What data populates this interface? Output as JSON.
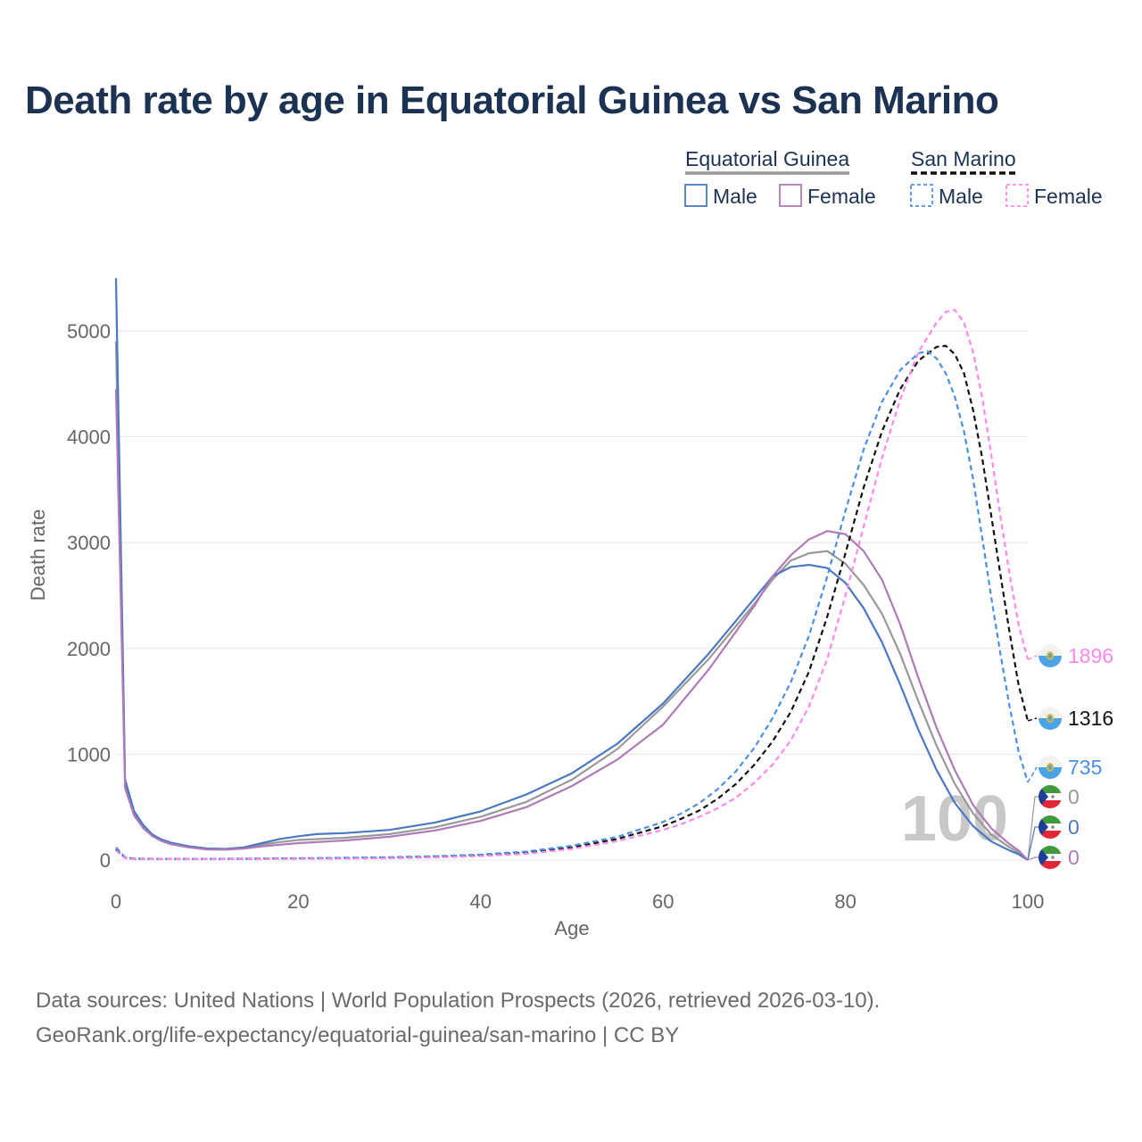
{
  "title": "Death rate by age in Equatorial Guinea vs San Marino",
  "footer": {
    "line1": "Data sources: United Nations | World Population Prospects (2026, retrieved 2026-03-10).",
    "line2": "GeoRank.org/life-expectancy/equatorial-guinea/san-marino | CC BY"
  },
  "legend": {
    "groups": [
      {
        "name": "Equatorial Guinea",
        "line_color": "#999999",
        "dashed": false,
        "items": [
          {
            "label": "Male",
            "color": "#4a78c2"
          },
          {
            "label": "Female",
            "color": "#b07ab8"
          }
        ]
      },
      {
        "name": "San Marino",
        "line_color": "#111111",
        "dashed": true,
        "items": [
          {
            "label": "Male",
            "color": "#4a90e2"
          },
          {
            "label": "Female",
            "color": "#ff88ee"
          }
        ]
      }
    ]
  },
  "watermark": "100",
  "end_labels": [
    {
      "text": "1896",
      "value": 1896,
      "color": "#ff88ee",
      "flag": "san-marino"
    },
    {
      "text": "1316",
      "value": 1316,
      "color": "#111111",
      "flag": "san-marino"
    },
    {
      "text": "735",
      "value": 735,
      "color": "#4a90e2",
      "flag": "san-marino"
    },
    {
      "text": "0",
      "value": 0,
      "color": "#999999",
      "flag": "equatorial-guinea"
    },
    {
      "text": "0",
      "value": 0,
      "color": "#4a78c2",
      "flag": "equatorial-guinea"
    },
    {
      "text": "0",
      "value": 0,
      "color": "#b07ab8",
      "flag": "equatorial-guinea"
    }
  ],
  "chart_data": {
    "type": "line",
    "xlabel": "Age",
    "ylabel": "Death rate",
    "xlim": [
      0,
      100
    ],
    "ylim": [
      -100,
      5500
    ],
    "xticks": [
      0,
      20,
      40,
      60,
      80,
      100
    ],
    "yticks": [
      0,
      1000,
      2000,
      3000,
      4000,
      5000
    ],
    "grid": true,
    "series": [
      {
        "name": "Equatorial Guinea Total",
        "color": "#999999",
        "dash": false,
        "points": [
          [
            0,
            4900
          ],
          [
            1,
            700
          ],
          [
            2,
            440
          ],
          [
            3,
            310
          ],
          [
            4,
            235
          ],
          [
            5,
            190
          ],
          [
            6,
            160
          ],
          [
            8,
            125
          ],
          [
            10,
            105
          ],
          [
            12,
            102
          ],
          [
            14,
            115
          ],
          [
            16,
            145
          ],
          [
            18,
            170
          ],
          [
            20,
            190
          ],
          [
            25,
            210
          ],
          [
            30,
            245
          ],
          [
            35,
            310
          ],
          [
            40,
            410
          ],
          [
            45,
            550
          ],
          [
            50,
            760
          ],
          [
            55,
            1050
          ],
          [
            60,
            1450
          ],
          [
            65,
            1900
          ],
          [
            70,
            2420
          ],
          [
            72,
            2650
          ],
          [
            74,
            2830
          ],
          [
            76,
            2900
          ],
          [
            78,
            2920
          ],
          [
            80,
            2800
          ],
          [
            82,
            2600
          ],
          [
            84,
            2330
          ],
          [
            86,
            1950
          ],
          [
            88,
            1500
          ],
          [
            90,
            1080
          ],
          [
            92,
            720
          ],
          [
            94,
            440
          ],
          [
            96,
            240
          ],
          [
            98,
            120
          ],
          [
            99,
            70
          ],
          [
            100,
            0
          ]
        ]
      },
      {
        "name": "Equatorial Guinea Male",
        "color": "#4a78c2",
        "dash": false,
        "points": [
          [
            0,
            5500
          ],
          [
            1,
            760
          ],
          [
            2,
            460
          ],
          [
            3,
            330
          ],
          [
            4,
            240
          ],
          [
            5,
            195
          ],
          [
            6,
            165
          ],
          [
            8,
            130
          ],
          [
            10,
            110
          ],
          [
            12,
            105
          ],
          [
            14,
            120
          ],
          [
            16,
            160
          ],
          [
            18,
            200
          ],
          [
            20,
            225
          ],
          [
            22,
            245
          ],
          [
            25,
            255
          ],
          [
            30,
            285
          ],
          [
            35,
            355
          ],
          [
            40,
            460
          ],
          [
            45,
            620
          ],
          [
            50,
            820
          ],
          [
            55,
            1100
          ],
          [
            60,
            1480
          ],
          [
            65,
            1950
          ],
          [
            70,
            2470
          ],
          [
            72,
            2680
          ],
          [
            74,
            2770
          ],
          [
            76,
            2790
          ],
          [
            78,
            2760
          ],
          [
            80,
            2620
          ],
          [
            82,
            2380
          ],
          [
            84,
            2060
          ],
          [
            86,
            1660
          ],
          [
            88,
            1230
          ],
          [
            90,
            850
          ],
          [
            92,
            540
          ],
          [
            94,
            320
          ],
          [
            96,
            175
          ],
          [
            98,
            90
          ],
          [
            99,
            55
          ],
          [
            100,
            0
          ]
        ]
      },
      {
        "name": "Equatorial Guinea Female",
        "color": "#b07ab8",
        "dash": false,
        "points": [
          [
            0,
            4450
          ],
          [
            1,
            680
          ],
          [
            2,
            420
          ],
          [
            3,
            300
          ],
          [
            4,
            225
          ],
          [
            5,
            180
          ],
          [
            6,
            150
          ],
          [
            8,
            120
          ],
          [
            10,
            100
          ],
          [
            12,
            98
          ],
          [
            14,
            108
          ],
          [
            16,
            130
          ],
          [
            18,
            145
          ],
          [
            20,
            160
          ],
          [
            25,
            185
          ],
          [
            30,
            220
          ],
          [
            35,
            280
          ],
          [
            40,
            370
          ],
          [
            45,
            500
          ],
          [
            50,
            700
          ],
          [
            55,
            950
          ],
          [
            60,
            1280
          ],
          [
            65,
            1800
          ],
          [
            70,
            2400
          ],
          [
            72,
            2680
          ],
          [
            74,
            2880
          ],
          [
            76,
            3030
          ],
          [
            78,
            3110
          ],
          [
            80,
            3080
          ],
          [
            82,
            2920
          ],
          [
            84,
            2650
          ],
          [
            86,
            2230
          ],
          [
            88,
            1720
          ],
          [
            90,
            1250
          ],
          [
            92,
            850
          ],
          [
            94,
            520
          ],
          [
            96,
            300
          ],
          [
            98,
            150
          ],
          [
            99,
            90
          ],
          [
            100,
            0
          ]
        ]
      },
      {
        "name": "San Marino Total",
        "color": "#111111",
        "dash": true,
        "points": [
          [
            0,
            100
          ],
          [
            1,
            20
          ],
          [
            2,
            12
          ],
          [
            5,
            10
          ],
          [
            10,
            10
          ],
          [
            15,
            12
          ],
          [
            20,
            15
          ],
          [
            25,
            18
          ],
          [
            30,
            22
          ],
          [
            35,
            30
          ],
          [
            40,
            45
          ],
          [
            45,
            70
          ],
          [
            50,
            120
          ],
          [
            55,
            200
          ],
          [
            60,
            320
          ],
          [
            62,
            390
          ],
          [
            64,
            470
          ],
          [
            66,
            580
          ],
          [
            68,
            720
          ],
          [
            70,
            900
          ],
          [
            72,
            1120
          ],
          [
            74,
            1400
          ],
          [
            76,
            1780
          ],
          [
            78,
            2300
          ],
          [
            80,
            2900
          ],
          [
            82,
            3520
          ],
          [
            84,
            4050
          ],
          [
            86,
            4450
          ],
          [
            88,
            4720
          ],
          [
            90,
            4850
          ],
          [
            91,
            4860
          ],
          [
            92,
            4780
          ],
          [
            93,
            4600
          ],
          [
            94,
            4250
          ],
          [
            95,
            3800
          ],
          [
            96,
            3250
          ],
          [
            97,
            2700
          ],
          [
            98,
            2150
          ],
          [
            99,
            1650
          ],
          [
            100,
            1316
          ]
        ]
      },
      {
        "name": "San Marino Male",
        "color": "#4a90e2",
        "dash": true,
        "points": [
          [
            0,
            120
          ],
          [
            1,
            25
          ],
          [
            2,
            14
          ],
          [
            5,
            12
          ],
          [
            10,
            11
          ],
          [
            15,
            14
          ],
          [
            20,
            18
          ],
          [
            25,
            22
          ],
          [
            30,
            27
          ],
          [
            35,
            36
          ],
          [
            40,
            52
          ],
          [
            45,
            80
          ],
          [
            50,
            135
          ],
          [
            55,
            220
          ],
          [
            60,
            360
          ],
          [
            62,
            440
          ],
          [
            64,
            540
          ],
          [
            66,
            670
          ],
          [
            68,
            840
          ],
          [
            70,
            1060
          ],
          [
            72,
            1340
          ],
          [
            74,
            1680
          ],
          [
            76,
            2120
          ],
          [
            78,
            2680
          ],
          [
            80,
            3300
          ],
          [
            82,
            3880
          ],
          [
            84,
            4330
          ],
          [
            86,
            4630
          ],
          [
            88,
            4790
          ],
          [
            89,
            4810
          ],
          [
            90,
            4740
          ],
          [
            91,
            4600
          ],
          [
            92,
            4380
          ],
          [
            93,
            4050
          ],
          [
            94,
            3600
          ],
          [
            95,
            3050
          ],
          [
            96,
            2480
          ],
          [
            97,
            1950
          ],
          [
            98,
            1450
          ],
          [
            99,
            1020
          ],
          [
            100,
            735
          ]
        ]
      },
      {
        "name": "San Marino Female",
        "color": "#ff88ee",
        "dash": true,
        "points": [
          [
            0,
            90
          ],
          [
            1,
            18
          ],
          [
            2,
            10
          ],
          [
            5,
            9
          ],
          [
            10,
            9
          ],
          [
            15,
            10
          ],
          [
            20,
            12
          ],
          [
            25,
            14
          ],
          [
            30,
            18
          ],
          [
            35,
            25
          ],
          [
            40,
            38
          ],
          [
            45,
            60
          ],
          [
            50,
            105
          ],
          [
            55,
            180
          ],
          [
            60,
            285
          ],
          [
            62,
            340
          ],
          [
            64,
            410
          ],
          [
            66,
            490
          ],
          [
            68,
            590
          ],
          [
            70,
            730
          ],
          [
            72,
            900
          ],
          [
            74,
            1130
          ],
          [
            76,
            1450
          ],
          [
            78,
            1900
          ],
          [
            80,
            2500
          ],
          [
            82,
            3150
          ],
          [
            84,
            3800
          ],
          [
            86,
            4350
          ],
          [
            88,
            4800
          ],
          [
            90,
            5080
          ],
          [
            91,
            5180
          ],
          [
            92,
            5200
          ],
          [
            93,
            5080
          ],
          [
            94,
            4800
          ],
          [
            95,
            4370
          ],
          [
            96,
            3830
          ],
          [
            97,
            3250
          ],
          [
            98,
            2700
          ],
          [
            99,
            2220
          ],
          [
            100,
            1896
          ]
        ]
      }
    ]
  }
}
